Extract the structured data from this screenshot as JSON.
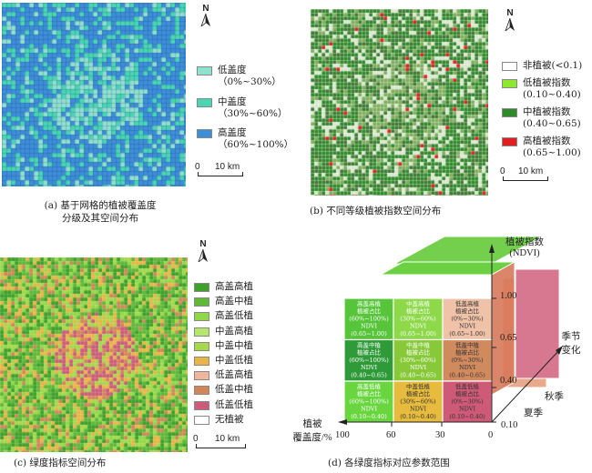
{
  "panel_a": {
    "north": "N",
    "legend": [
      {
        "label": "低盖度",
        "range": "（0%~30%）",
        "color": "#8fe0cf"
      },
      {
        "label": "中盖度",
        "range": "（30%~60%）",
        "color": "#48d6b3"
      },
      {
        "label": "高盖度",
        "range": "（60%~100%）",
        "color": "#3d8ed8"
      }
    ],
    "scale_zero": "0",
    "scale_label": "10 km",
    "caption_line1": "(a) 基于网格的植被覆盖度",
    "caption_line2": "分级及其空间分布"
  },
  "panel_b": {
    "north": "N",
    "legend": [
      {
        "label": "非植被(<0.1)",
        "range": "",
        "color": "#ffffff"
      },
      {
        "label": "低植被指数",
        "range": "(0.10~0.40)",
        "color": "#8ee82e"
      },
      {
        "label": "中植被指数",
        "range": "(0.40~0.65)",
        "color": "#2f8a2a"
      },
      {
        "label": "高植被指数",
        "range": "(0.65~1.00)",
        "color": "#e02020"
      }
    ],
    "scale_zero": "0",
    "scale_label": "10 km",
    "caption": "(b) 不同等级植被指数空间分布"
  },
  "panel_c": {
    "north": "N",
    "legend": [
      {
        "label": "高盖高植",
        "color": "#3fa02a"
      },
      {
        "label": "高盖中植",
        "color": "#5fb838"
      },
      {
        "label": "高盖低植",
        "color": "#8fd948"
      },
      {
        "label": "中盖高植",
        "color": "#b4e86a"
      },
      {
        "label": "中盖中植",
        "color": "#a5d84a"
      },
      {
        "label": "中盖低植",
        "color": "#e8b546"
      },
      {
        "label": "低盖高植",
        "color": "#f0b59a"
      },
      {
        "label": "低盖中植",
        "color": "#d28658"
      },
      {
        "label": "低盖低植",
        "color": "#cc5c7a"
      },
      {
        "label": "无植被",
        "color": "#ffffff"
      }
    ],
    "scale_zero": "0",
    "scale_label": "10 km",
    "caption": "(c) 绿度指标空间分布"
  },
  "panel_d": {
    "y_axis_title": "植被指数",
    "y_axis_unit": "(NDVI)",
    "y_ticks": [
      "1.00",
      "0.65",
      "0.40",
      "0.10"
    ],
    "x_axis_title_line1": "植被",
    "x_axis_title_line2": "覆盖度/%",
    "x_ticks": [
      "100",
      "60",
      "30",
      "0"
    ],
    "z_axis_title_line1": "季节",
    "z_axis_title_line2": "变化",
    "z_ticks": [
      "秋季",
      "夏季"
    ],
    "caption": "(d) 各绿度指标对应参数范围",
    "cells": [
      {
        "title": "高盖高植",
        "line1": "植被占比",
        "line2": "(60%~100%)",
        "line3": "NDVI",
        "line4": "(0.65~1.00)",
        "color": "#57c53a"
      },
      {
        "title": "中盖高植",
        "line1": "植被占比",
        "line2": "(30%~60%)",
        "line3": "NDVI",
        "line4": "(0.65~1.00)",
        "color": "#8dd94a"
      },
      {
        "title": "低盖高植",
        "line1": "植被占比",
        "line2": "(0%~30%)",
        "line3": "NDVI",
        "line4": "(0.65~1.00)",
        "color": "#f0c2a8"
      },
      {
        "title": "高盖中植",
        "line1": "植被占比",
        "line2": "(60%~100%)",
        "line3": "NDVI",
        "line4": "(0.40~0.65)",
        "color": "#2f9a38"
      },
      {
        "title": "中盖中植",
        "line1": "植被占比",
        "line2": "(30%~60%)",
        "line3": "NDVI",
        "line4": "(0.40~0.65)",
        "color": "#88c93a"
      },
      {
        "title": "低盖中植",
        "line1": "植被占比",
        "line2": "(0%~30%)",
        "line3": "NDVI",
        "line4": "(0.40~0.65)",
        "color": "#d08a5e"
      },
      {
        "title": "高盖低植",
        "line1": "植被占比",
        "line2": "(60%~100%)",
        "line3": "NDVI",
        "line4": "(0.10~0.40)",
        "color": "#69d640"
      },
      {
        "title": "中盖低植",
        "line1": "植被占比",
        "line2": "(30%~60%)",
        "line3": "NDVI",
        "line4": "(0.10~0.40)",
        "color": "#e6bb3e"
      },
      {
        "title": "低盖低植",
        "line1": "植被占比",
        "line2": "(0%~30%)",
        "line3": "NDVI",
        "line4": "(0.10~0.40)",
        "color": "#cf5a78"
      }
    ]
  }
}
